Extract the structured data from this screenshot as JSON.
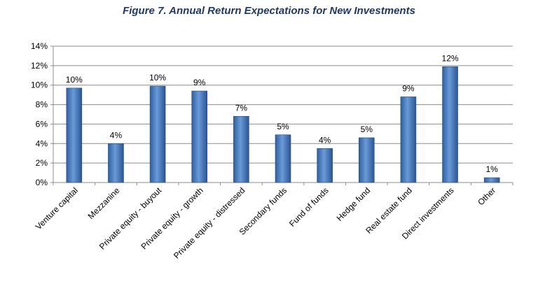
{
  "chart_data": {
    "type": "bar",
    "title": "Figure 7. Annual Return Expectations for New Investments",
    "categories": [
      "Venture capital",
      "Mezzanine",
      "Private equity - buyout",
      "Private equity - growth",
      "Private equity - distressed",
      "Secondary funds",
      "Fund of funds",
      "Hedge fund",
      "Real estate fund",
      "Direct investments",
      "Other"
    ],
    "values": [
      9.7,
      4.0,
      9.9,
      9.4,
      6.8,
      4.9,
      3.5,
      4.6,
      8.8,
      11.9,
      0.5
    ],
    "data_labels": [
      "10%",
      "4%",
      "10%",
      "9%",
      "7%",
      "5%",
      "4%",
      "5%",
      "9%",
      "12%",
      "1%"
    ],
    "yticks": [
      "0%",
      "2%",
      "4%",
      "6%",
      "8%",
      "10%",
      "12%",
      "14%"
    ],
    "ylim": [
      0,
      14
    ],
    "grid": true,
    "bar_color": "#4f81bd"
  }
}
